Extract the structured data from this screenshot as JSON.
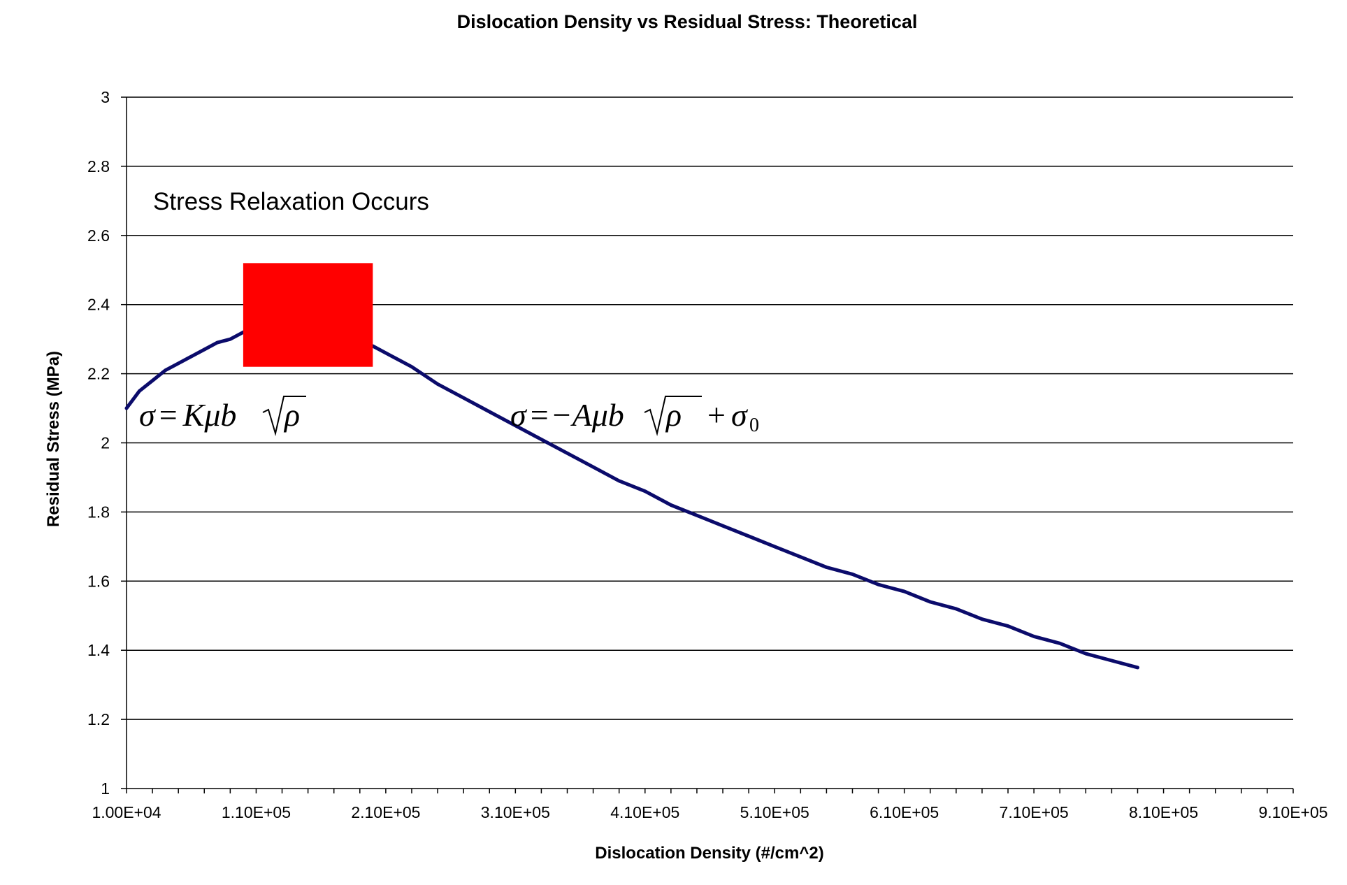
{
  "chart_data": {
    "type": "line",
    "title": "Dislocation Density vs Residual Stress: Theoretical",
    "xlabel": "Dislocation Density (#/cm^2)",
    "ylabel": "Residual Stress (MPa)",
    "xlim": [
      10000,
      910000
    ],
    "ylim": [
      1,
      3
    ],
    "grid": "horizontal",
    "x_tick_labels": [
      "1.00E+04",
      "1.10E+05",
      "2.10E+05",
      "3.10E+05",
      "4.10E+05",
      "5.10E+05",
      "6.10E+05",
      "7.10E+05",
      "8.10E+05",
      "9.10E+05"
    ],
    "x_ticks": [
      10000,
      110000,
      210000,
      310000,
      410000,
      510000,
      610000,
      710000,
      810000,
      910000
    ],
    "y_ticks": [
      1,
      1.2,
      1.4,
      1.6,
      1.8,
      2,
      2.2,
      2.4,
      2.6,
      2.8,
      3
    ],
    "y_tick_labels": [
      "1",
      "1.2",
      "1.4",
      "1.6",
      "1.8",
      "2",
      "2.2",
      "2.4",
      "2.6",
      "2.8",
      "3"
    ],
    "series": [
      {
        "color": "#0b0b6b",
        "x": [
          10000,
          20000,
          30000,
          40000,
          50000,
          60000,
          70000,
          80000,
          90000,
          100000,
          110000,
          120000,
          130000,
          140000,
          150000,
          160000,
          170000,
          180000,
          190000,
          200000,
          215000,
          230000,
          250000,
          270000,
          290000,
          310000,
          330000,
          350000,
          370000,
          390000,
          410000,
          430000,
          450000,
          470000,
          490000,
          510000,
          530000,
          550000,
          570000,
          590000,
          610000,
          630000,
          650000,
          670000,
          690000,
          710000,
          730000,
          750000,
          770000,
          790000
        ],
        "y": [
          2.1,
          2.15,
          2.18,
          2.21,
          2.23,
          2.25,
          2.27,
          2.29,
          2.3,
          2.32,
          2.33,
          2.34,
          2.34,
          2.34,
          2.34,
          2.33,
          2.32,
          2.31,
          2.29,
          2.28,
          2.25,
          2.22,
          2.17,
          2.13,
          2.09,
          2.05,
          2.01,
          1.97,
          1.93,
          1.89,
          1.86,
          1.82,
          1.79,
          1.76,
          1.73,
          1.7,
          1.67,
          1.64,
          1.62,
          1.59,
          1.57,
          1.54,
          1.52,
          1.49,
          1.47,
          1.44,
          1.42,
          1.39,
          1.37,
          1.35
        ]
      }
    ],
    "highlight": {
      "color": "#ff0000",
      "x_range": [
        100000,
        200000
      ],
      "y_range": [
        2.22,
        2.52
      ]
    },
    "annotations": {
      "relaxation": "Stress Relaxation Occurs",
      "formula_left": "σ = Kμb√ρ",
      "formula_right": "σ = −Aμb√ρ + σ0"
    }
  }
}
